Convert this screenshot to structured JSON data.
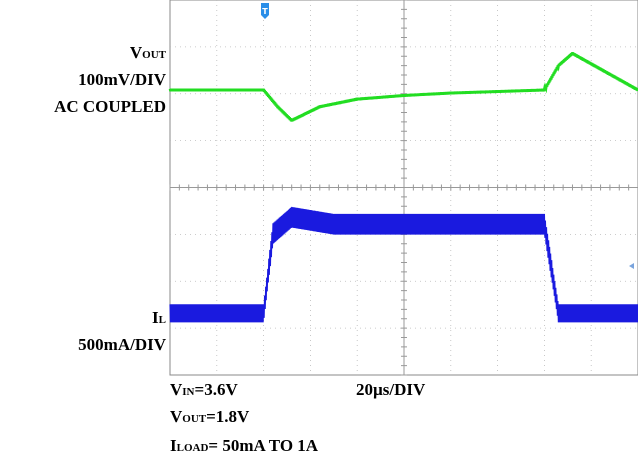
{
  "chart_data": {
    "type": "line",
    "title": "",
    "x": {
      "label": "20µs/DIV",
      "scale_per_div": 20,
      "unit": "µs",
      "divisions": 10
    },
    "trigger_marker": "T",
    "series": [
      {
        "name": "VOUT",
        "label_main": "V",
        "label_sub": "OUT",
        "scale": "100mV/DIV",
        "coupling": "AC COUPLED",
        "color": "#22dd22",
        "points_div": [
          [
            0,
            0
          ],
          [
            2.0,
            0
          ],
          [
            2.3,
            -0.55
          ],
          [
            2.6,
            -1.0
          ],
          [
            2.8,
            -0.85
          ],
          [
            3.2,
            -0.55
          ],
          [
            4,
            -0.3
          ],
          [
            5,
            -0.18
          ],
          [
            6,
            -0.1
          ],
          [
            7,
            -0.05
          ],
          [
            8.0,
            0
          ],
          [
            8.3,
            0.8
          ],
          [
            8.6,
            1.2
          ],
          [
            9.3,
            0.6
          ],
          [
            10,
            0
          ]
        ]
      },
      {
        "name": "IL",
        "label_main": "I",
        "label_sub": "L",
        "scale": "500mA/DIV",
        "color": "#1a1adf",
        "points_div": [
          [
            0,
            0.1
          ],
          [
            2.0,
            0.1
          ],
          [
            2.2,
            1.8
          ],
          [
            2.6,
            2.15
          ],
          [
            3.5,
            2.0
          ],
          [
            8.0,
            2.0
          ],
          [
            8.3,
            0.1
          ],
          [
            10,
            0.1
          ]
        ]
      }
    ],
    "annotations": {
      "vin": {
        "main": "V",
        "sub": "IN",
        "value": "=3.6V"
      },
      "vout": {
        "main": "V",
        "sub": "OUT",
        "value": "=1.8V"
      },
      "iload": {
        "main": "I",
        "sub": "LOAD",
        "value": "= 50mA TO 1A"
      }
    },
    "grid": true,
    "background": "#ffffff",
    "grid_color": "#bbbbbb"
  }
}
